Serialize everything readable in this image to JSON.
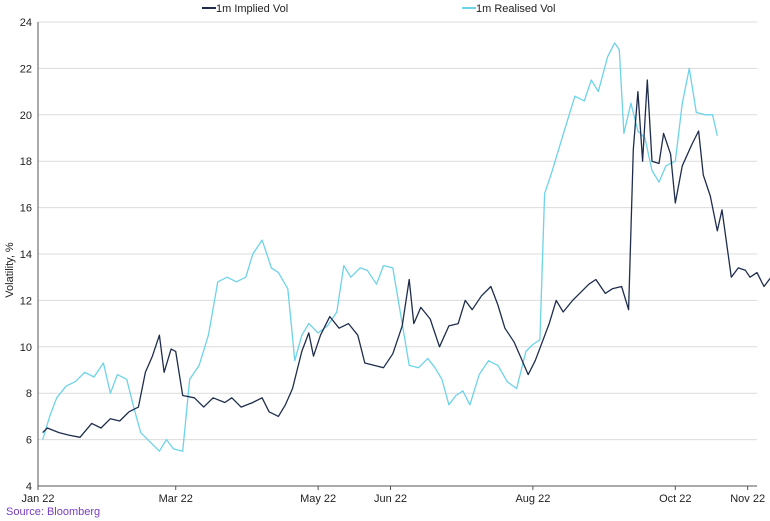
{
  "chart_data": {
    "type": "line",
    "ylabel": "Volatility, %",
    "ylim": [
      4,
      24
    ],
    "yticks": [
      4,
      6,
      8,
      10,
      12,
      14,
      16,
      18,
      20,
      22,
      24
    ],
    "xlim": [
      "2022-01-01",
      "2022-11-05"
    ],
    "xticks": [
      {
        "date": "2022-01-01",
        "label": "Jan 22"
      },
      {
        "date": "2022-03-01",
        "label": "Mar 22"
      },
      {
        "date": "2022-05-01",
        "label": "May 22"
      },
      {
        "date": "2022-06-01",
        "label": "Jun 22"
      },
      {
        "date": "2022-08-01",
        "label": "Aug 22"
      },
      {
        "date": "2022-10-01",
        "label": "Oct 22"
      },
      {
        "date": "2022-11-01",
        "label": "Nov 22"
      }
    ],
    "grid": {
      "horizontal": true,
      "vertical": false
    },
    "legend_position": "top",
    "series": [
      {
        "name": "1m Implied Vol",
        "color": "#1f2d4d",
        "points": [
          [
            "2022-01-03",
            6.3
          ],
          [
            "2022-01-05",
            6.5
          ],
          [
            "2022-01-10",
            6.3
          ],
          [
            "2022-01-14",
            6.2
          ],
          [
            "2022-01-19",
            6.1
          ],
          [
            "2022-01-24",
            6.7
          ],
          [
            "2022-01-28",
            6.5
          ],
          [
            "2022-02-01",
            6.9
          ],
          [
            "2022-02-05",
            6.8
          ],
          [
            "2022-02-09",
            7.2
          ],
          [
            "2022-02-13",
            7.4
          ],
          [
            "2022-02-16",
            8.9
          ],
          [
            "2022-02-19",
            9.6
          ],
          [
            "2022-02-22",
            10.5
          ],
          [
            "2022-02-24",
            8.9
          ],
          [
            "2022-02-27",
            9.9
          ],
          [
            "2022-03-01",
            9.8
          ],
          [
            "2022-03-04",
            7.9
          ],
          [
            "2022-03-09",
            7.8
          ],
          [
            "2022-03-13",
            7.4
          ],
          [
            "2022-03-17",
            7.8
          ],
          [
            "2022-03-22",
            7.6
          ],
          [
            "2022-03-25",
            7.8
          ],
          [
            "2022-03-29",
            7.4
          ],
          [
            "2022-04-03",
            7.6
          ],
          [
            "2022-04-07",
            7.8
          ],
          [
            "2022-04-10",
            7.2
          ],
          [
            "2022-04-14",
            7.0
          ],
          [
            "2022-04-17",
            7.5
          ],
          [
            "2022-04-20",
            8.2
          ],
          [
            "2022-04-24",
            9.8
          ],
          [
            "2022-04-27",
            10.6
          ],
          [
            "2022-04-29",
            9.6
          ],
          [
            "2022-05-02",
            10.5
          ],
          [
            "2022-05-06",
            11.3
          ],
          [
            "2022-05-10",
            10.8
          ],
          [
            "2022-05-14",
            11.0
          ],
          [
            "2022-05-18",
            10.5
          ],
          [
            "2022-05-21",
            9.3
          ],
          [
            "2022-05-25",
            9.2
          ],
          [
            "2022-05-29",
            9.1
          ],
          [
            "2022-06-02",
            9.7
          ],
          [
            "2022-06-06",
            10.9
          ],
          [
            "2022-06-09",
            12.9
          ],
          [
            "2022-06-11",
            11.0
          ],
          [
            "2022-06-14",
            11.7
          ],
          [
            "2022-06-18",
            11.2
          ],
          [
            "2022-06-22",
            10.0
          ],
          [
            "2022-06-26",
            10.9
          ],
          [
            "2022-06-30",
            11.0
          ],
          [
            "2022-07-03",
            12.0
          ],
          [
            "2022-07-06",
            11.6
          ],
          [
            "2022-07-10",
            12.2
          ],
          [
            "2022-07-14",
            12.6
          ],
          [
            "2022-07-17",
            11.8
          ],
          [
            "2022-07-20",
            10.8
          ],
          [
            "2022-07-24",
            10.2
          ],
          [
            "2022-07-27",
            9.5
          ],
          [
            "2022-07-30",
            8.8
          ],
          [
            "2022-08-02",
            9.4
          ],
          [
            "2022-08-05",
            10.2
          ],
          [
            "2022-08-08",
            11.0
          ],
          [
            "2022-08-11",
            12.0
          ],
          [
            "2022-08-14",
            11.5
          ],
          [
            "2022-08-18",
            12.0
          ],
          [
            "2022-08-21",
            12.3
          ],
          [
            "2022-08-25",
            12.7
          ],
          [
            "2022-08-28",
            12.9
          ],
          [
            "2022-09-01",
            12.3
          ],
          [
            "2022-09-04",
            12.5
          ],
          [
            "2022-09-08",
            12.6
          ],
          [
            "2022-09-11",
            11.6
          ],
          [
            "2022-09-13",
            18.5
          ],
          [
            "2022-09-15",
            21.0
          ],
          [
            "2022-09-17",
            18.0
          ],
          [
            "2022-09-19",
            21.5
          ],
          [
            "2022-09-21",
            18.0
          ],
          [
            "2022-09-24",
            17.9
          ],
          [
            "2022-09-26",
            19.2
          ],
          [
            "2022-09-29",
            18.3
          ],
          [
            "2022-10-01",
            16.2
          ],
          [
            "2022-10-04",
            17.8
          ],
          [
            "2022-10-08",
            18.7
          ],
          [
            "2022-10-11",
            19.3
          ],
          [
            "2022-10-13",
            17.4
          ],
          [
            "2022-10-16",
            16.5
          ],
          [
            "2022-10-19",
            15.0
          ],
          [
            "2022-10-21",
            15.9
          ],
          [
            "2022-10-25",
            13.0
          ],
          [
            "2022-10-28",
            13.4
          ],
          [
            "2022-10-31",
            13.3
          ],
          [
            "2022-11-02",
            13.0
          ],
          [
            "2022-11-05",
            13.2
          ],
          [
            "2022-11-08",
            12.6
          ],
          [
            "2022-11-11",
            13.0
          ],
          [
            "2022-11-13",
            13.8
          ],
          [
            "2022-11-15",
            13.0
          ],
          [
            "2022-11-17",
            13.4
          ],
          [
            "2022-11-19",
            13.0
          ]
        ]
      },
      {
        "name": "1m Realised Vol",
        "color": "#6dd3e8",
        "points": [
          [
            "2022-01-03",
            6.0
          ],
          [
            "2022-01-06",
            7.0
          ],
          [
            "2022-01-09",
            7.8
          ],
          [
            "2022-01-13",
            8.3
          ],
          [
            "2022-01-17",
            8.5
          ],
          [
            "2022-01-21",
            8.9
          ],
          [
            "2022-01-25",
            8.7
          ],
          [
            "2022-01-29",
            9.3
          ],
          [
            "2022-02-01",
            8.0
          ],
          [
            "2022-02-04",
            8.8
          ],
          [
            "2022-02-08",
            8.6
          ],
          [
            "2022-02-11",
            7.4
          ],
          [
            "2022-02-14",
            6.3
          ],
          [
            "2022-02-18",
            5.9
          ],
          [
            "2022-02-22",
            5.5
          ],
          [
            "2022-02-25",
            6.0
          ],
          [
            "2022-02-28",
            5.6
          ],
          [
            "2022-03-04",
            5.5
          ],
          [
            "2022-03-07",
            8.6
          ],
          [
            "2022-03-11",
            9.2
          ],
          [
            "2022-03-15",
            10.5
          ],
          [
            "2022-03-19",
            12.8
          ],
          [
            "2022-03-23",
            13.0
          ],
          [
            "2022-03-27",
            12.8
          ],
          [
            "2022-03-31",
            13.0
          ],
          [
            "2022-04-03",
            14.0
          ],
          [
            "2022-04-07",
            14.6
          ],
          [
            "2022-04-11",
            13.4
          ],
          [
            "2022-04-14",
            13.2
          ],
          [
            "2022-04-18",
            12.5
          ],
          [
            "2022-04-21",
            9.4
          ],
          [
            "2022-04-24",
            10.5
          ],
          [
            "2022-04-27",
            11.0
          ],
          [
            "2022-05-01",
            10.6
          ],
          [
            "2022-05-05",
            10.9
          ],
          [
            "2022-05-09",
            11.5
          ],
          [
            "2022-05-12",
            13.5
          ],
          [
            "2022-05-15",
            13.0
          ],
          [
            "2022-05-19",
            13.4
          ],
          [
            "2022-05-22",
            13.3
          ],
          [
            "2022-05-26",
            12.7
          ],
          [
            "2022-05-29",
            13.5
          ],
          [
            "2022-06-02",
            13.4
          ],
          [
            "2022-06-06",
            11.0
          ],
          [
            "2022-06-09",
            9.2
          ],
          [
            "2022-06-13",
            9.1
          ],
          [
            "2022-06-17",
            9.5
          ],
          [
            "2022-06-20",
            9.1
          ],
          [
            "2022-06-23",
            8.6
          ],
          [
            "2022-06-26",
            7.5
          ],
          [
            "2022-06-29",
            7.9
          ],
          [
            "2022-07-02",
            8.1
          ],
          [
            "2022-07-05",
            7.5
          ],
          [
            "2022-07-09",
            8.8
          ],
          [
            "2022-07-13",
            9.4
          ],
          [
            "2022-07-17",
            9.2
          ],
          [
            "2022-07-21",
            8.5
          ],
          [
            "2022-07-25",
            8.2
          ],
          [
            "2022-07-29",
            9.8
          ],
          [
            "2022-08-01",
            10.1
          ],
          [
            "2022-08-04",
            10.3
          ],
          [
            "2022-08-06",
            16.6
          ],
          [
            "2022-08-09",
            17.5
          ],
          [
            "2022-08-12",
            18.5
          ],
          [
            "2022-08-15",
            19.5
          ],
          [
            "2022-08-19",
            20.8
          ],
          [
            "2022-08-23",
            20.6
          ],
          [
            "2022-08-26",
            21.5
          ],
          [
            "2022-08-29",
            21.0
          ],
          [
            "2022-09-02",
            22.5
          ],
          [
            "2022-09-05",
            23.1
          ],
          [
            "2022-09-07",
            22.8
          ],
          [
            "2022-09-09",
            19.2
          ],
          [
            "2022-09-12",
            20.5
          ],
          [
            "2022-09-15",
            19.3
          ],
          [
            "2022-09-18",
            19.0
          ],
          [
            "2022-09-21",
            17.6
          ],
          [
            "2022-09-24",
            17.1
          ],
          [
            "2022-09-27",
            17.8
          ],
          [
            "2022-10-01",
            18.0
          ],
          [
            "2022-10-04",
            20.5
          ],
          [
            "2022-10-07",
            22.0
          ],
          [
            "2022-10-10",
            20.1
          ],
          [
            "2022-10-14",
            20.0
          ],
          [
            "2022-10-17",
            20.0
          ],
          [
            "2022-10-19",
            19.1
          ]
        ]
      }
    ]
  },
  "source": "Source: Bloomberg"
}
